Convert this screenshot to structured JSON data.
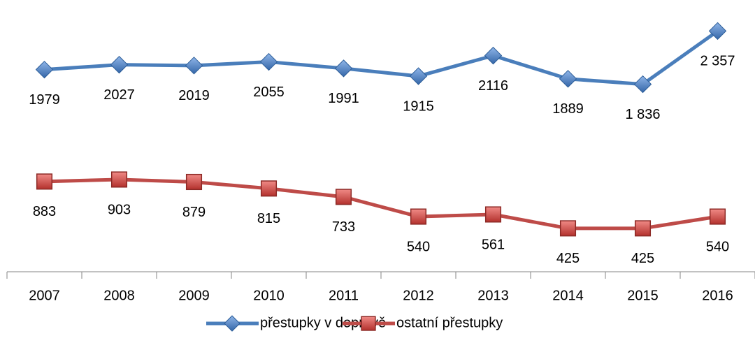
{
  "chart_data": {
    "type": "line",
    "categories": [
      "2007",
      "2008",
      "2009",
      "2010",
      "2011",
      "2012",
      "2013",
      "2014",
      "2015",
      "2016"
    ],
    "series": [
      {
        "name": "přestupky v dopravě",
        "color": "#4a7ebb",
        "marker": "diamond",
        "values": [
          1979,
          2027,
          2019,
          2055,
          1991,
          1915,
          2116,
          1889,
          1836,
          2357
        ],
        "value_labels": [
          "1979",
          "2027",
          "2019",
          "2055",
          "1991",
          "1915",
          "2116",
          "1889",
          "1 836",
          "2 357"
        ]
      },
      {
        "name": "ostatní přestupky",
        "color": "#be4b48",
        "marker": "square",
        "values": [
          883,
          903,
          879,
          815,
          733,
          540,
          561,
          425,
          425,
          540
        ]
      }
    ],
    "ylim": [
      0,
      2500
    ],
    "legend": "bottom"
  }
}
